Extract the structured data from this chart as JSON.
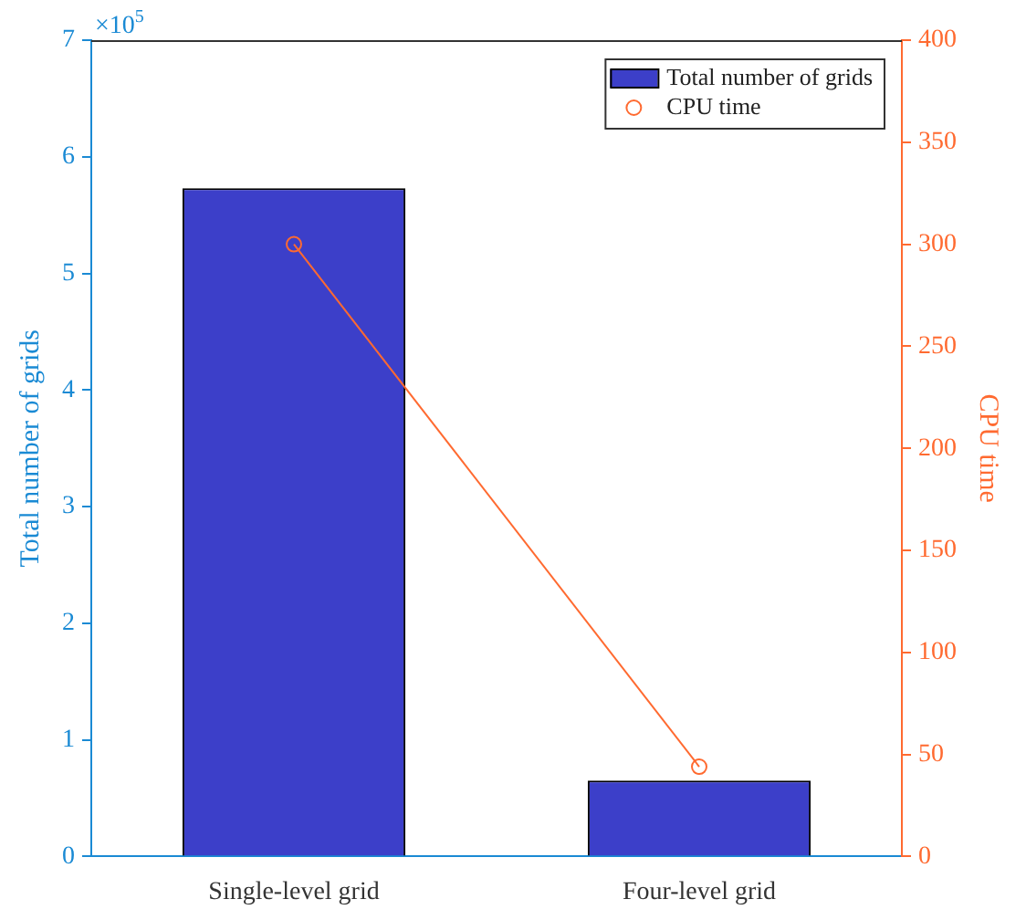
{
  "chart_data": {
    "type": "bar",
    "categories": [
      "Single-level grid",
      "Four-level grid"
    ],
    "ylabel": "Total number of grids",
    "y2label": "CPU time",
    "ylim": [
      0,
      7
    ],
    "yticks": [
      0,
      1,
      2,
      3,
      4,
      5,
      6,
      7
    ],
    "y2lim": [
      0,
      400
    ],
    "y2ticks": [
      0,
      50,
      100,
      150,
      200,
      250,
      300,
      350,
      400
    ],
    "annotations": [
      "×10$^{5}$"
    ],
    "legend": "top right",
    "grid": false,
    "series": [
      {
        "name": "Total number of grids",
        "color": "#3c3fc9",
        "values": [
          5.73,
          0.65
        ]
      },
      {
        "name": "CPU time",
        "type": "line",
        "axis": "y2",
        "marker": "circle",
        "line_style": "solid",
        "color": "#ff6a30",
        "values": [
          300,
          44
        ]
      }
    ]
  }
}
